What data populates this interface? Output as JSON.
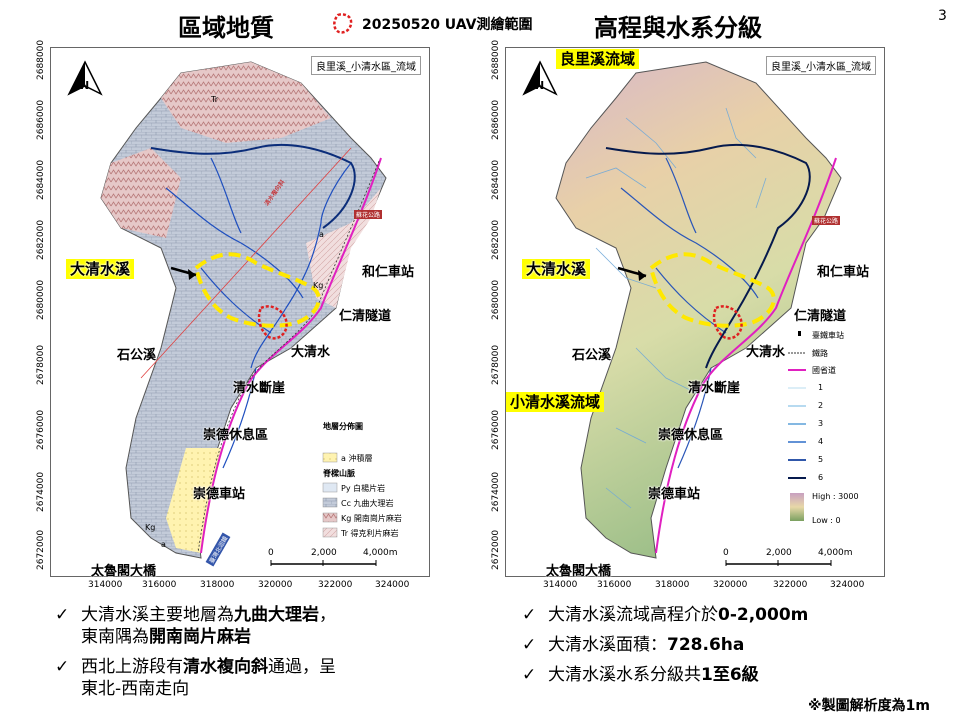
{
  "page_number": "3",
  "title_left": "區域地質",
  "title_right": "高程與水系分級",
  "top_legend": "20250520 UAV測繪範圍",
  "map_box_title": "良里溪_小清水區_流域",
  "x_ticks": [
    "314000",
    "316000",
    "318000",
    "320000",
    "322000",
    "324000"
  ],
  "y_ticks": [
    "2688000",
    "2686000",
    "2684000",
    "2682000",
    "2680000",
    "2678000",
    "2676000",
    "2674000",
    "2672000"
  ],
  "north": "N",
  "labels": {
    "daqing_creek": "大清水溪",
    "heren_station": "和仁車站",
    "renqing_tunnel": "仁清隧道",
    "shigong_creek": "石公溪",
    "daqingshui": "大清水",
    "qingshui_cliff": "清水斷崖",
    "chongde_rest": "崇德休息區",
    "chongde_station": "崇德車站",
    "taroko_bridge": "太魯閣大橋",
    "liangli_basin": "良里溪流域",
    "xiaoqing_basin": "小清水溪流域",
    "suhua_road": "蘇花公路",
    "suhua_road2": "臺灣北迴鐵",
    "qingshui_fold": "清水複向斜"
  },
  "map_unit_labels": {
    "tr": "Tr",
    "kg": "Kg",
    "a": "a"
  },
  "scale": [
    "0",
    "2,000",
    "4,000m"
  ],
  "geo_legend": {
    "title": "地層分佈圖",
    "a_label": "a 沖積層",
    "group": "脊樑山脈",
    "py": "Py 白楊片岩",
    "cc": "Cc 九曲大理岩",
    "kg": "Kg 開南崗片麻岩",
    "tr": "Tr 得克利片麻岩"
  },
  "elev_legend": {
    "station": "臺鐵車站",
    "rail": "鐵路",
    "road": "國省道",
    "orders": [
      "1",
      "2",
      "3",
      "4",
      "5",
      "6"
    ],
    "high": "High : 3000",
    "low": "Low : 0"
  },
  "colors": {
    "tr": "#d9b3b3",
    "cc": "#bcc6d6",
    "a": "#fff4b3",
    "stream": "#1f4fbf",
    "road": "#e020c0",
    "yellow": "#ffe800",
    "red": "#e02020"
  },
  "bullets_left": [
    {
      "parts": [
        {
          "t": "大清水溪主要地層為"
        },
        {
          "t": "九曲大理岩",
          "b": true
        },
        {
          "t": "，"
        }
      ],
      "line2": [
        {
          "t": "東南隅為"
        },
        {
          "t": "開南崗片麻岩",
          "b": true
        }
      ]
    },
    {
      "parts": [
        {
          "t": "西北上游段有"
        },
        {
          "t": "清水複向斜",
          "b": true
        },
        {
          "t": "通過，呈"
        }
      ],
      "line2": [
        {
          "t": "東北-西南走向"
        }
      ]
    }
  ],
  "bullets_right": [
    {
      "parts": [
        {
          "t": "大清水溪流域高程介於"
        },
        {
          "t": "0-2,000m",
          "b": true
        }
      ]
    },
    {
      "parts": [
        {
          "t": "大清水溪面積："
        },
        {
          "t": "728.6ha",
          "b": true
        }
      ]
    },
    {
      "parts": [
        {
          "t": "大清水溪水系分級共"
        },
        {
          "t": "1至6級",
          "b": true
        }
      ]
    }
  ],
  "footnote": "※製圖解析度為1m"
}
